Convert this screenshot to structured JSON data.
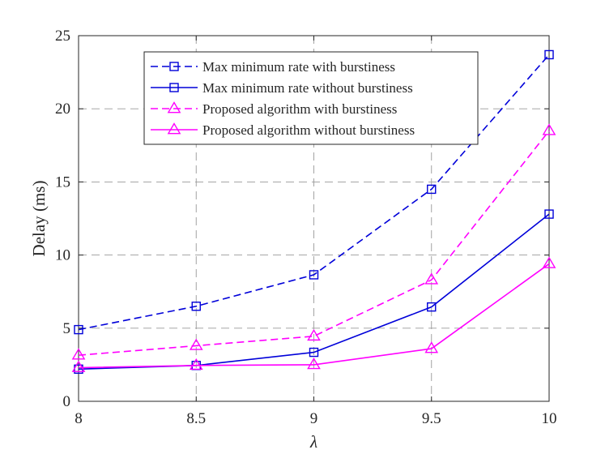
{
  "chart_data": {
    "type": "line",
    "title": "",
    "xlabel": "λ",
    "ylabel": "Delay (ms)",
    "x": [
      8,
      8.5,
      9,
      9.5,
      10
    ],
    "xlim": [
      8,
      10
    ],
    "ylim": [
      0,
      25
    ],
    "xticks": [
      "8",
      "8.5",
      "9",
      "9.5",
      "10"
    ],
    "yticks": [
      "0",
      "5",
      "10",
      "15",
      "20",
      "25"
    ],
    "grid": true,
    "legend_position": "top-right",
    "series": [
      {
        "name": "Max minimum rate with burstiness",
        "values": [
          4.9,
          6.5,
          8.65,
          14.5,
          23.7
        ],
        "color": "#0000d9",
        "dash": "dashed",
        "marker": "square"
      },
      {
        "name": "Max minimum rate without burstiness",
        "values": [
          2.2,
          2.45,
          3.35,
          6.45,
          12.8
        ],
        "color": "#0000d9",
        "dash": "solid",
        "marker": "square"
      },
      {
        "name": "Proposed algorithm with burstiness",
        "values": [
          3.15,
          3.8,
          4.45,
          8.3,
          18.5
        ],
        "color": "#ff00ff",
        "dash": "dashed",
        "marker": "triangle"
      },
      {
        "name": "Proposed algorithm without burstiness",
        "values": [
          2.3,
          2.45,
          2.5,
          3.6,
          9.4
        ],
        "color": "#ff00ff",
        "dash": "solid",
        "marker": "triangle"
      }
    ]
  }
}
